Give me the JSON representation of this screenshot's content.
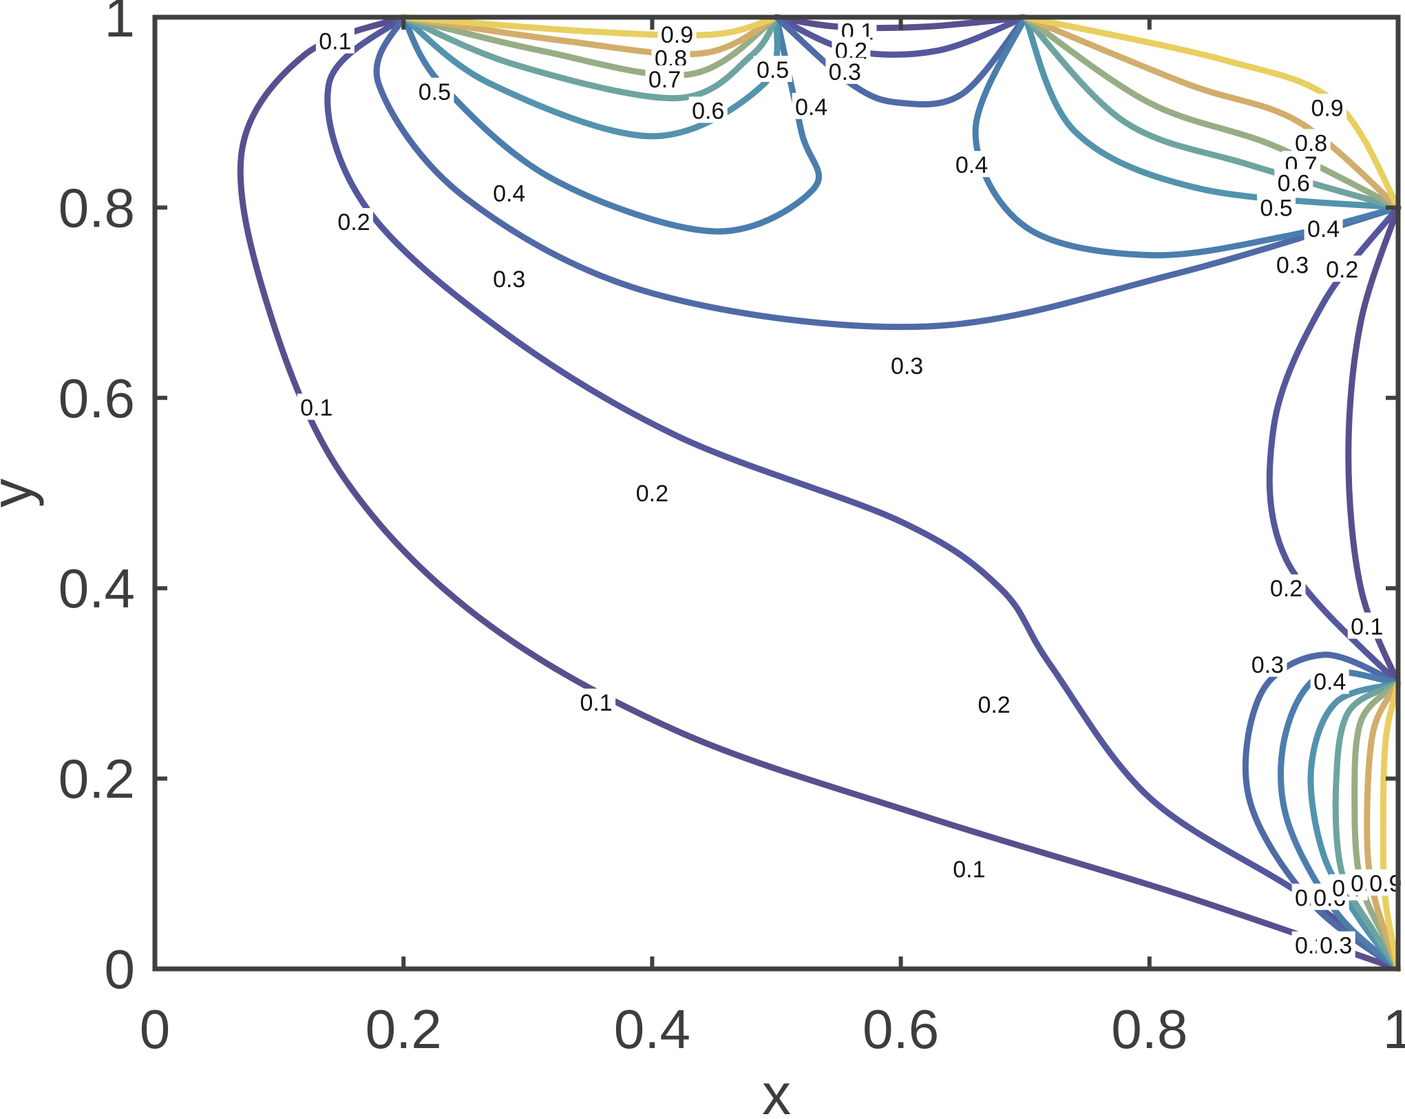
{
  "chart_data": {
    "type": "contour",
    "xlabel": "x",
    "ylabel": "y",
    "xlim": [
      0,
      1
    ],
    "ylim": [
      0,
      1
    ],
    "grid": false,
    "box": true,
    "colormap": "parula-like (dark purple = low, yellow = high)",
    "x_ticks": [
      "0",
      "0.2",
      "0.4",
      "0.6",
      "0.8",
      "1"
    ],
    "y_ticks": [
      "0",
      "0.2",
      "0.4",
      "0.6",
      "0.8",
      "1"
    ],
    "sources": [
      {
        "x": 0.2,
        "y": 1.0
      },
      {
        "x": 0.5,
        "y": 1.0
      },
      {
        "x": 0.7,
        "y": 1.0
      },
      {
        "x": 1.0,
        "y": 0.8
      },
      {
        "x": 1.0,
        "y": 0.3
      },
      {
        "x": 1.0,
        "y": 0.0
      }
    ],
    "levels": [
      0.1,
      0.2,
      0.3,
      0.4,
      0.5,
      0.6,
      0.7,
      0.8,
      0.9
    ],
    "level_colors": {
      "0.1": "#5a4f8e",
      "0.2": "#55579c",
      "0.3": "#4f6aa6",
      "0.4": "#4b7ead",
      "0.5": "#5393ad",
      "0.6": "#6ea4a0",
      "0.7": "#97ad86",
      "0.8": "#d2ad6c",
      "0.9": "#e9cf60"
    },
    "contours": [
      {
        "level": 0.1,
        "points": [
          [
            0.2,
            1.0
          ],
          [
            0.12,
            0.96
          ],
          [
            0.07,
            0.86
          ],
          [
            0.09,
            0.7
          ],
          [
            0.15,
            0.52
          ],
          [
            0.26,
            0.37
          ],
          [
            0.42,
            0.25
          ],
          [
            0.62,
            0.16
          ],
          [
            0.82,
            0.08
          ],
          [
            1.0,
            0.0
          ]
        ]
      },
      {
        "level": 0.2,
        "points": [
          [
            0.2,
            1.0
          ],
          [
            0.14,
            0.93
          ],
          [
            0.17,
            0.8
          ],
          [
            0.28,
            0.67
          ],
          [
            0.42,
            0.56
          ],
          [
            0.6,
            0.47
          ],
          [
            0.68,
            0.4
          ],
          [
            0.72,
            0.32
          ],
          [
            0.8,
            0.18
          ],
          [
            0.92,
            0.08
          ],
          [
            1.0,
            0.0
          ]
        ]
      },
      {
        "level": 0.3,
        "points": [
          [
            0.2,
            1.0
          ],
          [
            0.18,
            0.93
          ],
          [
            0.25,
            0.81
          ],
          [
            0.4,
            0.71
          ],
          [
            0.62,
            0.675
          ],
          [
            0.82,
            0.73
          ],
          [
            1.0,
            0.8
          ]
        ]
      },
      {
        "level": 0.4,
        "points": [
          [
            0.2,
            1.0
          ],
          [
            0.23,
            0.93
          ],
          [
            0.32,
            0.83
          ],
          [
            0.45,
            0.775
          ],
          [
            0.53,
            0.82
          ],
          [
            0.52,
            0.88
          ],
          [
            0.5,
            1.0
          ]
        ]
      },
      {
        "level": 0.5,
        "points": [
          [
            0.2,
            1.0
          ],
          [
            0.27,
            0.93
          ],
          [
            0.4,
            0.875
          ],
          [
            0.49,
            0.93
          ],
          [
            0.5,
            1.0
          ]
        ]
      },
      {
        "level": 0.6,
        "points": [
          [
            0.2,
            1.0
          ],
          [
            0.29,
            0.95
          ],
          [
            0.42,
            0.915
          ],
          [
            0.48,
            0.96
          ],
          [
            0.5,
            1.0
          ]
        ]
      },
      {
        "level": 0.7,
        "points": [
          [
            0.2,
            1.0
          ],
          [
            0.31,
            0.965
          ],
          [
            0.43,
            0.94
          ],
          [
            0.5,
            1.0
          ]
        ]
      },
      {
        "level": 0.8,
        "points": [
          [
            0.2,
            1.0
          ],
          [
            0.33,
            0.975
          ],
          [
            0.44,
            0.962
          ],
          [
            0.5,
            1.0
          ]
        ]
      },
      {
        "level": 0.9,
        "points": [
          [
            0.2,
            1.0
          ],
          [
            0.35,
            0.985
          ],
          [
            0.45,
            0.982
          ],
          [
            0.5,
            1.0
          ]
        ]
      },
      {
        "level": 0.1,
        "points": [
          [
            0.5,
            1.0
          ],
          [
            0.55,
            0.99
          ],
          [
            0.62,
            0.99
          ],
          [
            0.7,
            1.0
          ]
        ]
      },
      {
        "level": 0.2,
        "points": [
          [
            0.5,
            1.0
          ],
          [
            0.56,
            0.965
          ],
          [
            0.63,
            0.965
          ],
          [
            0.7,
            1.0
          ]
        ]
      },
      {
        "level": 0.3,
        "points": [
          [
            0.5,
            1.0
          ],
          [
            0.56,
            0.93
          ],
          [
            0.6,
            0.91
          ],
          [
            0.65,
            0.92
          ],
          [
            0.7,
            1.0
          ]
        ]
      },
      {
        "level": 0.4,
        "points": [
          [
            0.7,
            1.0
          ],
          [
            0.66,
            0.88
          ],
          [
            0.7,
            0.78
          ],
          [
            0.8,
            0.75
          ],
          [
            0.91,
            0.77
          ],
          [
            1.0,
            0.8
          ]
        ]
      },
      {
        "level": 0.5,
        "points": [
          [
            0.7,
            1.0
          ],
          [
            0.74,
            0.88
          ],
          [
            0.84,
            0.82
          ],
          [
            1.0,
            0.8
          ]
        ]
      },
      {
        "level": 0.6,
        "points": [
          [
            0.7,
            1.0
          ],
          [
            0.78,
            0.89
          ],
          [
            0.88,
            0.845
          ],
          [
            1.0,
            0.8
          ]
        ]
      },
      {
        "level": 0.7,
        "points": [
          [
            0.7,
            1.0
          ],
          [
            0.8,
            0.91
          ],
          [
            0.9,
            0.865
          ],
          [
            1.0,
            0.8
          ]
        ]
      },
      {
        "level": 0.8,
        "points": [
          [
            0.7,
            1.0
          ],
          [
            0.83,
            0.93
          ],
          [
            0.92,
            0.89
          ],
          [
            1.0,
            0.8
          ]
        ]
      },
      {
        "level": 0.9,
        "points": [
          [
            0.7,
            1.0
          ],
          [
            0.86,
            0.955
          ],
          [
            0.95,
            0.91
          ],
          [
            1.0,
            0.8
          ]
        ]
      },
      {
        "level": 0.2,
        "points": [
          [
            1.0,
            0.8
          ],
          [
            0.94,
            0.7
          ],
          [
            0.9,
            0.57
          ],
          [
            0.91,
            0.43
          ],
          [
            1.0,
            0.3
          ]
        ]
      },
      {
        "level": 0.1,
        "points": [
          [
            1.0,
            0.8
          ],
          [
            0.97,
            0.68
          ],
          [
            0.96,
            0.54
          ],
          [
            0.97,
            0.4
          ],
          [
            1.0,
            0.3
          ]
        ]
      },
      {
        "level": 0.3,
        "points": [
          [
            1.0,
            0.3
          ],
          [
            0.94,
            0.33
          ],
          [
            0.89,
            0.29
          ],
          [
            0.88,
            0.18
          ],
          [
            0.93,
            0.07
          ],
          [
            1.0,
            0.0
          ]
        ]
      },
      {
        "level": 0.4,
        "points": [
          [
            1.0,
            0.3
          ],
          [
            0.94,
            0.31
          ],
          [
            0.91,
            0.25
          ],
          [
            0.91,
            0.16
          ],
          [
            0.95,
            0.06
          ],
          [
            1.0,
            0.0
          ]
        ]
      },
      {
        "level": 0.5,
        "points": [
          [
            1.0,
            0.3
          ],
          [
            0.95,
            0.28
          ],
          [
            0.93,
            0.21
          ],
          [
            0.94,
            0.12
          ],
          [
            0.97,
            0.05
          ],
          [
            1.0,
            0.0
          ]
        ]
      },
      {
        "level": 0.6,
        "points": [
          [
            1.0,
            0.3
          ],
          [
            0.96,
            0.27
          ],
          [
            0.95,
            0.19
          ],
          [
            0.955,
            0.1
          ],
          [
            0.98,
            0.04
          ],
          [
            1.0,
            0.0
          ]
        ]
      },
      {
        "level": 0.7,
        "points": [
          [
            1.0,
            0.3
          ],
          [
            0.97,
            0.26
          ],
          [
            0.965,
            0.17
          ],
          [
            0.97,
            0.09
          ],
          [
            0.99,
            0.03
          ],
          [
            1.0,
            0.0
          ]
        ]
      },
      {
        "level": 0.8,
        "points": [
          [
            1.0,
            0.3
          ],
          [
            0.98,
            0.25
          ],
          [
            0.975,
            0.15
          ],
          [
            0.98,
            0.08
          ],
          [
            1.0,
            0.0
          ]
        ]
      },
      {
        "level": 0.9,
        "points": [
          [
            1.0,
            0.3
          ],
          [
            0.99,
            0.24
          ],
          [
            0.988,
            0.14
          ],
          [
            0.99,
            0.07
          ],
          [
            1.0,
            0.0
          ]
        ]
      }
    ],
    "contour_labels": [
      {
        "text": "0.1",
        "x": 0.145,
        "y": 0.975
      },
      {
        "text": "0.2",
        "x": 0.16,
        "y": 0.785
      },
      {
        "text": "0.1",
        "x": 0.13,
        "y": 0.59
      },
      {
        "text": "0.4",
        "x": 0.285,
        "y": 0.815
      },
      {
        "text": "0.3",
        "x": 0.285,
        "y": 0.725
      },
      {
        "text": "0.5",
        "x": 0.225,
        "y": 0.922
      },
      {
        "text": "0.9",
        "x": 0.42,
        "y": 0.982
      },
      {
        "text": "0.8",
        "x": 0.415,
        "y": 0.957
      },
      {
        "text": "0.7",
        "x": 0.41,
        "y": 0.935
      },
      {
        "text": "0.6",
        "x": 0.445,
        "y": 0.902
      },
      {
        "text": "0.5",
        "x": 0.497,
        "y": 0.945
      },
      {
        "text": "0.4",
        "x": 0.528,
        "y": 0.906
      },
      {
        "text": "0.1",
        "x": 0.565,
        "y": 0.985
      },
      {
        "text": "0.2",
        "x": 0.56,
        "y": 0.965
      },
      {
        "text": "0.3",
        "x": 0.555,
        "y": 0.943
      },
      {
        "text": "0.4",
        "x": 0.657,
        "y": 0.845
      },
      {
        "text": "0.3",
        "x": 0.605,
        "y": 0.634
      },
      {
        "text": "0.9",
        "x": 0.943,
        "y": 0.905
      },
      {
        "text": "0.8",
        "x": 0.93,
        "y": 0.868
      },
      {
        "text": "0.7",
        "x": 0.922,
        "y": 0.845
      },
      {
        "text": "0.6",
        "x": 0.916,
        "y": 0.826
      },
      {
        "text": "0.5",
        "x": 0.902,
        "y": 0.8
      },
      {
        "text": "0.4",
        "x": 0.94,
        "y": 0.778
      },
      {
        "text": "0.3",
        "x": 0.915,
        "y": 0.74
      },
      {
        "text": "0.2",
        "x": 0.955,
        "y": 0.735
      },
      {
        "text": "0.2",
        "x": 0.4,
        "y": 0.5
      },
      {
        "text": "0.2",
        "x": 0.675,
        "y": 0.278
      },
      {
        "text": "0.1",
        "x": 0.355,
        "y": 0.28
      },
      {
        "text": "0.1",
        "x": 0.655,
        "y": 0.105
      },
      {
        "text": "0.2",
        "x": 0.91,
        "y": 0.4
      },
      {
        "text": "0.1",
        "x": 0.975,
        "y": 0.36
      },
      {
        "text": "0.3",
        "x": 0.895,
        "y": 0.32
      },
      {
        "text": "0.4",
        "x": 0.945,
        "y": 0.302
      },
      {
        "text": "0.5",
        "x": 0.93,
        "y": 0.075
      },
      {
        "text": "0.6",
        "x": 0.945,
        "y": 0.075
      },
      {
        "text": "0.7",
        "x": 0.96,
        "y": 0.085
      },
      {
        "text": "0.8",
        "x": 0.975,
        "y": 0.09
      },
      {
        "text": "0.9",
        "x": 0.99,
        "y": 0.09
      },
      {
        "text": "0.2",
        "x": 0.93,
        "y": 0.025
      },
      {
        "text": "0.3",
        "x": 0.95,
        "y": 0.025
      }
    ]
  }
}
